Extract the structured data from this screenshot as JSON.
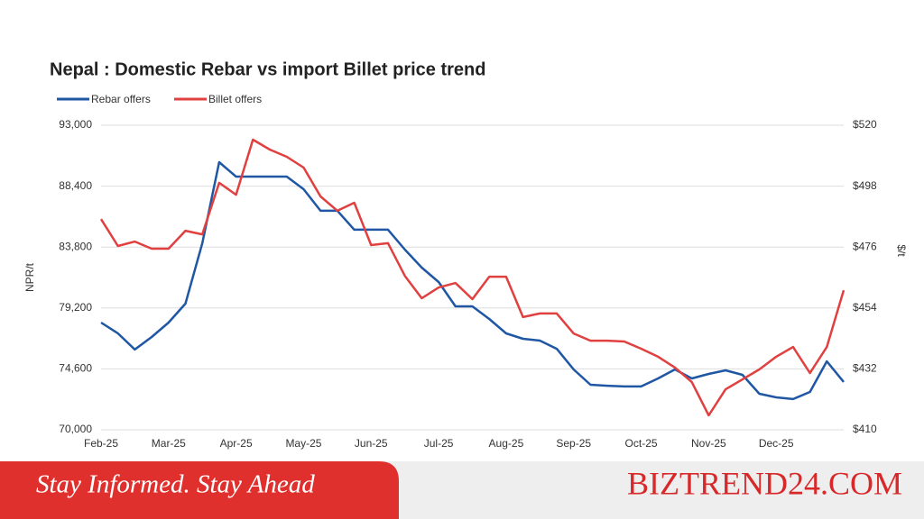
{
  "chart_data": {
    "type": "line",
    "title": "Nepal : Domestic Rebar vs import Billet price trend",
    "y_label": "NPR/t",
    "y2_label": "$/t",
    "categories": [
      "Feb-25",
      null,
      null,
      null,
      "Mar-25",
      null,
      null,
      null,
      "Apr-25",
      null,
      null,
      null,
      "May-25",
      null,
      null,
      null,
      "Jun-25",
      null,
      null,
      null,
      "Jul-25",
      null,
      null,
      null,
      "Aug-25",
      null,
      null,
      null,
      "Sep-25",
      null,
      null,
      null,
      "Oct-25",
      null,
      null,
      null,
      "Nov-25",
      null,
      null,
      null,
      "Dec-25",
      null,
      null,
      null,
      null
    ],
    "series": [
      {
        "name": "Rebar offers",
        "color": "#1f57a4",
        "axis": "y",
        "values": [
          78100,
          77280,
          76060,
          77010,
          78100,
          79530,
          84090,
          90210,
          89120,
          89120,
          89120,
          89120,
          88170,
          86540,
          86540,
          85110,
          85110,
          85110,
          83610,
          82250,
          81160,
          79320,
          79320,
          78370,
          77280,
          76870,
          76740,
          76120,
          74560,
          73400,
          73330,
          73270,
          73270,
          73880,
          74560,
          73880,
          74220,
          74490,
          74150,
          72720,
          72450,
          72320,
          72860,
          75170,
          73610
        ]
      },
      {
        "name": "Billet offers",
        "color": "#e0403f",
        "axis": "y2",
        "values": [
          486.1,
          476.4,
          478.0,
          475.4,
          475.4,
          481.9,
          480.6,
          499.2,
          494.9,
          514.8,
          511.2,
          508.6,
          504.7,
          494.3,
          489.1,
          492.0,
          476.7,
          477.4,
          465.6,
          457.5,
          461.4,
          463.0,
          457.2,
          465.3,
          465.3,
          450.7,
          452.0,
          452.0,
          444.8,
          442.2,
          442.2,
          441.9,
          439.3,
          436.4,
          432.5,
          427.2,
          415.2,
          424.6,
          428.2,
          431.8,
          436.4,
          439.9,
          430.5,
          439.9,
          460.4
        ]
      }
    ],
    "ylim": [
      70000,
      93000
    ],
    "yticks": [
      {
        "value": 70000,
        "label": "70,000"
      },
      {
        "value": 74600,
        "label": "74,600"
      },
      {
        "value": 79200,
        "label": "79,200"
      },
      {
        "value": 83800,
        "label": "83,800"
      },
      {
        "value": 88400,
        "label": "88,400"
      },
      {
        "value": 93000,
        "label": "93,000"
      }
    ],
    "y2lim": [
      410,
      520
    ],
    "y2ticks": [
      {
        "value": 410,
        "label": "$410"
      },
      {
        "value": 432,
        "label": "$432"
      },
      {
        "value": 454,
        "label": "$454"
      },
      {
        "value": 476,
        "label": "$476"
      },
      {
        "value": 498,
        "label": "$498"
      },
      {
        "value": 520,
        "label": "$520"
      }
    ],
    "grid": true,
    "legend": "top-left"
  },
  "banner": {
    "tagline": "Stay Informed. Stay Ahead",
    "brand": "BIZTREND24.COM"
  }
}
